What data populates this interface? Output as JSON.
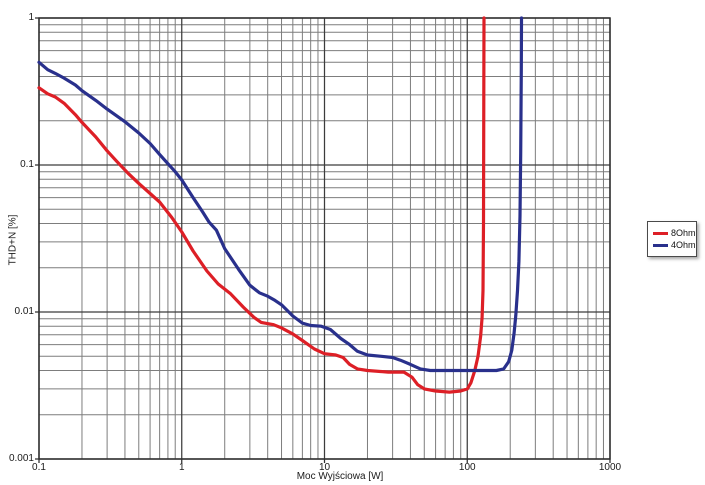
{
  "chart_data": {
    "type": "line",
    "title": "",
    "xlabel": "Moc Wyjściowa [W]",
    "ylabel": "THD+N [%]",
    "x_scale": "log",
    "y_scale": "log",
    "xlim": [
      0.1,
      1000
    ],
    "ylim": [
      0.001,
      1
    ],
    "x_ticks": [
      "0.1",
      "1",
      "10",
      "100",
      "1000"
    ],
    "y_ticks": [
      "1",
      "0.1",
      "0.01",
      "0.001"
    ],
    "grid": "log major+minor, dark gray, on",
    "legend_position": "outside-right",
    "series": [
      {
        "name": "8Ohm",
        "color": "#dd1f26",
        "points": [
          [
            0.1,
            0.335
          ],
          [
            0.115,
            0.305
          ],
          [
            0.13,
            0.29
          ],
          [
            0.15,
            0.263
          ],
          [
            0.18,
            0.22
          ],
          [
            0.2,
            0.195
          ],
          [
            0.25,
            0.155
          ],
          [
            0.3,
            0.125
          ],
          [
            0.35,
            0.106
          ],
          [
            0.42,
            0.088
          ],
          [
            0.5,
            0.075
          ],
          [
            0.6,
            0.064
          ],
          [
            0.7,
            0.056
          ],
          [
            0.85,
            0.044
          ],
          [
            1.0,
            0.035
          ],
          [
            1.2,
            0.026
          ],
          [
            1.5,
            0.019
          ],
          [
            1.8,
            0.0155
          ],
          [
            2.2,
            0.0133
          ],
          [
            2.7,
            0.0108
          ],
          [
            3.2,
            0.0092
          ],
          [
            3.6,
            0.0085
          ],
          [
            4.4,
            0.0082
          ],
          [
            5.0,
            0.0078
          ],
          [
            6.0,
            0.0071
          ],
          [
            7.0,
            0.0064
          ],
          [
            8.5,
            0.0056
          ],
          [
            10,
            0.0052
          ],
          [
            12,
            0.0051
          ],
          [
            13.5,
            0.0049
          ],
          [
            15,
            0.0044
          ],
          [
            17,
            0.0041
          ],
          [
            20,
            0.004
          ],
          [
            28,
            0.0039
          ],
          [
            36,
            0.0039
          ],
          [
            41,
            0.0036
          ],
          [
            45,
            0.0032
          ],
          [
            50,
            0.003
          ],
          [
            60,
            0.0029
          ],
          [
            75,
            0.00285
          ],
          [
            90,
            0.0029
          ],
          [
            100,
            0.003
          ],
          [
            106,
            0.0033
          ],
          [
            113,
            0.004
          ],
          [
            119,
            0.005
          ],
          [
            124,
            0.0068
          ],
          [
            127,
            0.0092
          ],
          [
            129,
            0.014
          ],
          [
            130,
            0.04
          ],
          [
            130.6,
            0.3
          ],
          [
            131,
            1.0
          ]
        ]
      },
      {
        "name": "4Ohm",
        "color": "#29308c",
        "points": [
          [
            0.1,
            0.5
          ],
          [
            0.115,
            0.445
          ],
          [
            0.13,
            0.42
          ],
          [
            0.15,
            0.39
          ],
          [
            0.18,
            0.35
          ],
          [
            0.2,
            0.32
          ],
          [
            0.25,
            0.275
          ],
          [
            0.3,
            0.24
          ],
          [
            0.4,
            0.197
          ],
          [
            0.5,
            0.165
          ],
          [
            0.6,
            0.14
          ],
          [
            0.7,
            0.118
          ],
          [
            0.8,
            0.102
          ],
          [
            0.9,
            0.09
          ],
          [
            1.0,
            0.079
          ],
          [
            1.2,
            0.06
          ],
          [
            1.4,
            0.048
          ],
          [
            1.55,
            0.041
          ],
          [
            1.75,
            0.036
          ],
          [
            2.0,
            0.027
          ],
          [
            2.5,
            0.0195
          ],
          [
            3.0,
            0.0152
          ],
          [
            3.5,
            0.0135
          ],
          [
            4.0,
            0.0128
          ],
          [
            4.5,
            0.012
          ],
          [
            5.0,
            0.0112
          ],
          [
            6.0,
            0.0094
          ],
          [
            7.0,
            0.0084
          ],
          [
            8.0,
            0.0081
          ],
          [
            9.5,
            0.008
          ],
          [
            11,
            0.0076
          ],
          [
            13,
            0.0066
          ],
          [
            15,
            0.006
          ],
          [
            17,
            0.0054
          ],
          [
            20,
            0.0051
          ],
          [
            25,
            0.005
          ],
          [
            30,
            0.0049
          ],
          [
            34,
            0.0047
          ],
          [
            40,
            0.0044
          ],
          [
            47,
            0.0041
          ],
          [
            55,
            0.004
          ],
          [
            80,
            0.004
          ],
          [
            120,
            0.004
          ],
          [
            160,
            0.004
          ],
          [
            180,
            0.0041
          ],
          [
            195,
            0.0046
          ],
          [
            205,
            0.0055
          ],
          [
            213,
            0.0072
          ],
          [
            219,
            0.0095
          ],
          [
            225,
            0.014
          ],
          [
            230,
            0.022
          ],
          [
            234,
            0.045
          ],
          [
            237,
            0.12
          ],
          [
            239,
            0.45
          ],
          [
            240,
            1.0
          ]
        ]
      }
    ]
  },
  "legend": {
    "items": [
      {
        "label": "8Ohm"
      },
      {
        "label": "4Ohm"
      }
    ]
  },
  "colors": {
    "background": "#ffffff",
    "grid_minor": "#7d7d7d",
    "grid_major": "#3c3c3c",
    "frame": "#2f2f2f",
    "text": "#1a1a1a"
  }
}
